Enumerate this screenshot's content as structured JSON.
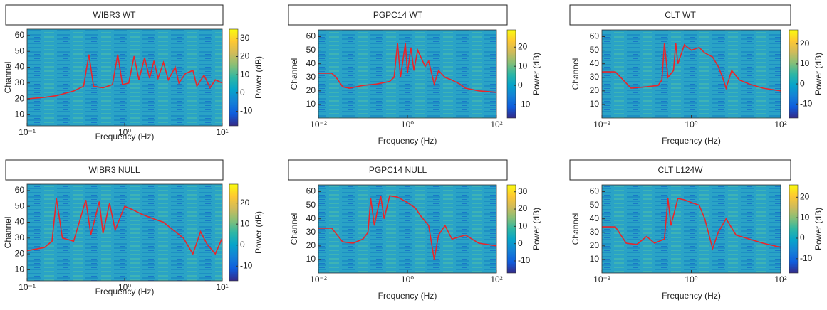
{
  "chart_data": [
    {
      "type": "line",
      "title": "WIBR3 WT",
      "xlabel": "Frequency (Hz)",
      "ylabel": "Channel",
      "log_x": true,
      "xlim": [
        0.1,
        10
      ],
      "xticks": [
        {
          "value": 0.1,
          "label": "10⁻¹"
        },
        {
          "value": 1,
          "label": "10⁰"
        },
        {
          "value": 10,
          "label": "10¹"
        }
      ],
      "ylim": [
        3,
        64
      ],
      "yticks": [
        10,
        20,
        30,
        40,
        50,
        60
      ],
      "x": [
        0.1,
        0.15,
        0.2,
        0.3,
        0.38,
        0.43,
        0.48,
        0.6,
        0.75,
        0.85,
        0.95,
        1.1,
        1.25,
        1.4,
        1.6,
        1.8,
        2.0,
        2.2,
        2.5,
        2.8,
        3.3,
        3.6,
        4.2,
        5,
        5.5,
        6.5,
        7.5,
        8.5,
        10
      ],
      "values": [
        20,
        21,
        22,
        25,
        28,
        48,
        28,
        27,
        29,
        48,
        29,
        30,
        47,
        32,
        46,
        33,
        44,
        33,
        43,
        32,
        40,
        30,
        36,
        38,
        28,
        35,
        27,
        32,
        30
      ],
      "color": "#e8262b",
      "colorbar_label": "Power (dB)",
      "clim": [
        -18,
        35
      ],
      "cticks": [
        -10,
        0,
        10,
        20,
        30
      ],
      "colormap": [
        "#352a87",
        "#0f5cdd",
        "#1481d6",
        "#06a4ca",
        "#2eb7a4",
        "#87bf77",
        "#d1bb59",
        "#fec832",
        "#f9fb0e"
      ]
    },
    {
      "type": "line",
      "title": "PGPC14 WT",
      "xlabel": "Frequency (Hz)",
      "ylabel": "Channel",
      "log_x": true,
      "xlim": [
        0.01,
        100
      ],
      "xticks": [
        {
          "value": 0.01,
          "label": "10⁻²"
        },
        {
          "value": 1,
          "label": "10⁰"
        },
        {
          "value": 100,
          "label": "10²"
        }
      ],
      "ylim": [
        0,
        65
      ],
      "yticks": [
        10,
        20,
        30,
        40,
        50,
        60
      ],
      "x": [
        0.01,
        0.02,
        0.025,
        0.035,
        0.05,
        0.1,
        0.2,
        0.4,
        0.5,
        0.6,
        0.7,
        0.9,
        1.0,
        1.2,
        1.4,
        1.7,
        2,
        2.5,
        3,
        4,
        5,
        7,
        10,
        15,
        20,
        40,
        100
      ],
      "values": [
        33,
        33,
        30,
        23,
        22,
        24,
        25,
        27,
        30,
        55,
        30,
        55,
        33,
        52,
        35,
        50,
        45,
        38,
        42,
        25,
        35,
        30,
        28,
        25,
        22,
        20,
        19
      ],
      "color": "#e8262b",
      "colorbar_label": "Power (dB)",
      "clim": [
        -17,
        29
      ],
      "cticks": [
        -10,
        0,
        10,
        20
      ],
      "colormap": [
        "#352a87",
        "#0f5cdd",
        "#1481d6",
        "#06a4ca",
        "#2eb7a4",
        "#87bf77",
        "#d1bb59",
        "#fec832",
        "#f9fb0e"
      ]
    },
    {
      "type": "line",
      "title": "CLT WT",
      "xlabel": "Frequency (Hz)",
      "ylabel": "Channel",
      "log_x": true,
      "xlim": [
        0.01,
        100
      ],
      "xticks": [
        {
          "value": 0.01,
          "label": "10⁻²"
        },
        {
          "value": 1,
          "label": "10⁰"
        },
        {
          "value": 100,
          "label": "10²"
        }
      ],
      "ylim": [
        0,
        65
      ],
      "yticks": [
        10,
        20,
        30,
        40,
        50,
        60
      ],
      "x": [
        0.01,
        0.02,
        0.03,
        0.045,
        0.1,
        0.18,
        0.22,
        0.25,
        0.3,
        0.4,
        0.45,
        0.5,
        0.7,
        1,
        1.5,
        2,
        3,
        4,
        5,
        6,
        8,
        12,
        20,
        40,
        100
      ],
      "values": [
        34,
        34,
        28,
        22,
        23,
        24,
        28,
        55,
        30,
        35,
        55,
        40,
        54,
        50,
        52,
        48,
        45,
        38,
        30,
        22,
        35,
        28,
        25,
        22,
        20
      ],
      "color": "#e8262b",
      "colorbar_label": "Power (dB)",
      "clim": [
        -17,
        27
      ],
      "cticks": [
        -10,
        0,
        10,
        20
      ],
      "colormap": [
        "#352a87",
        "#0f5cdd",
        "#1481d6",
        "#06a4ca",
        "#2eb7a4",
        "#87bf77",
        "#d1bb59",
        "#fec832",
        "#f9fb0e"
      ]
    },
    {
      "type": "line",
      "title": "WIBR3 NULL",
      "xlabel": "Frequency (Hz)",
      "ylabel": "Channel",
      "log_x": true,
      "xlim": [
        0.1,
        10
      ],
      "xticks": [
        {
          "value": 0.1,
          "label": "10⁻¹"
        },
        {
          "value": 1,
          "label": "10⁰"
        },
        {
          "value": 10,
          "label": "10¹"
        }
      ],
      "ylim": [
        3,
        64
      ],
      "yticks": [
        10,
        20,
        30,
        40,
        50,
        60
      ],
      "x": [
        0.1,
        0.15,
        0.18,
        0.2,
        0.23,
        0.3,
        0.4,
        0.45,
        0.55,
        0.6,
        0.7,
        0.8,
        1,
        1.2,
        1.5,
        2,
        2.5,
        3,
        4,
        5,
        6,
        7,
        8.5,
        10
      ],
      "values": [
        22,
        24,
        28,
        55,
        30,
        28,
        54,
        32,
        53,
        33,
        52,
        35,
        50,
        48,
        45,
        42,
        40,
        36,
        30,
        20,
        34,
        26,
        20,
        30
      ],
      "color": "#e8262b",
      "colorbar_label": "Power (dB)",
      "clim": [
        -17,
        29
      ],
      "cticks": [
        -10,
        0,
        10,
        20
      ],
      "colormap": [
        "#352a87",
        "#0f5cdd",
        "#1481d6",
        "#06a4ca",
        "#2eb7a4",
        "#87bf77",
        "#d1bb59",
        "#fec832",
        "#f9fb0e"
      ]
    },
    {
      "type": "line",
      "title": "PGPC14 NULL",
      "xlabel": "Frequency (Hz)",
      "ylabel": "Channel",
      "log_x": true,
      "xlim": [
        0.01,
        100
      ],
      "xticks": [
        {
          "value": 0.01,
          "label": "10⁻²"
        },
        {
          "value": 1,
          "label": "10⁰"
        },
        {
          "value": 100,
          "label": "10²"
        }
      ],
      "ylim": [
        0,
        65
      ],
      "yticks": [
        10,
        20,
        30,
        40,
        50,
        60
      ],
      "x": [
        0.01,
        0.02,
        0.035,
        0.06,
        0.1,
        0.13,
        0.15,
        0.18,
        0.25,
        0.3,
        0.4,
        0.6,
        1,
        1.5,
        2,
        3,
        4,
        5,
        7,
        10,
        20,
        40,
        100
      ],
      "values": [
        33,
        33,
        23,
        22,
        25,
        30,
        55,
        35,
        57,
        40,
        57,
        56,
        52,
        48,
        42,
        35,
        10,
        28,
        35,
        25,
        28,
        22,
        20
      ],
      "color": "#e8262b",
      "colorbar_label": "Power (dB)",
      "clim": [
        -17,
        34
      ],
      "cticks": [
        -10,
        0,
        10,
        20,
        30
      ],
      "colormap": [
        "#352a87",
        "#0f5cdd",
        "#1481d6",
        "#06a4ca",
        "#2eb7a4",
        "#87bf77",
        "#d1bb59",
        "#fec832",
        "#f9fb0e"
      ]
    },
    {
      "type": "line",
      "title": "CLT L124W",
      "xlabel": "Frequency (Hz)",
      "ylabel": "Channel",
      "log_x": true,
      "xlim": [
        0.01,
        100
      ],
      "xticks": [
        {
          "value": 0.01,
          "label": "10⁻²"
        },
        {
          "value": 1,
          "label": "10⁰"
        },
        {
          "value": 100,
          "label": "10²"
        }
      ],
      "ylim": [
        0,
        65
      ],
      "yticks": [
        10,
        20,
        30,
        40,
        50,
        60
      ],
      "x": [
        0.01,
        0.02,
        0.035,
        0.06,
        0.1,
        0.15,
        0.25,
        0.3,
        0.35,
        0.5,
        0.7,
        1,
        1.5,
        2,
        3,
        4,
        6,
        10,
        20,
        40,
        100
      ],
      "values": [
        34,
        34,
        22,
        21,
        27,
        22,
        25,
        55,
        35,
        55,
        54,
        52,
        50,
        40,
        18,
        30,
        40,
        28,
        25,
        22,
        19
      ],
      "color": "#e8262b",
      "colorbar_label": "Power (dB)",
      "clim": [
        -17,
        26
      ],
      "cticks": [
        -10,
        0,
        10,
        20
      ],
      "colormap": [
        "#352a87",
        "#0f5cdd",
        "#1481d6",
        "#06a4ca",
        "#2eb7a4",
        "#87bf77",
        "#d1bb59",
        "#fec832",
        "#f9fb0e"
      ]
    }
  ]
}
